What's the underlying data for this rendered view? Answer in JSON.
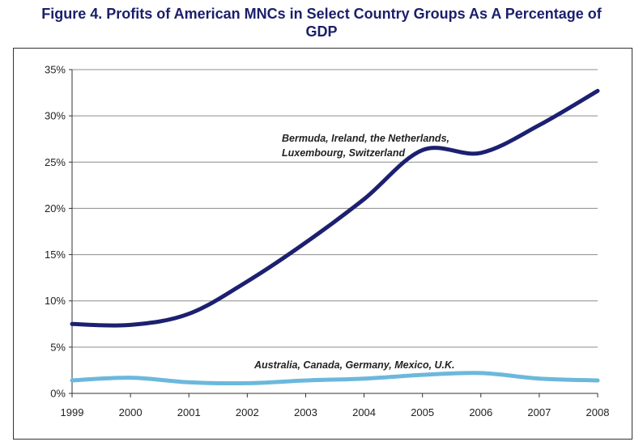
{
  "page_title_line1": "Figure 4. Profits of American MNCs in Select Country Groups As A Percentage of",
  "page_title_line2": "GDP",
  "chart_data": {
    "type": "line",
    "title": "Figure 4. Profits of American MNCs in Select Country Groups As A Percentage of GDP",
    "xlabel": "",
    "ylabel": "",
    "x": [
      1999,
      2000,
      2001,
      2002,
      2003,
      2004,
      2005,
      2006,
      2007,
      2008
    ],
    "x_tick_labels": [
      "1999",
      "2000",
      "2001",
      "2002",
      "2003",
      "2004",
      "2005",
      "2006",
      "2007",
      "2008"
    ],
    "y_tick_labels": [
      "0%",
      "5%",
      "10%",
      "15%",
      "20%",
      "25%",
      "30%",
      "35%"
    ],
    "y_ticks": [
      0,
      5,
      10,
      15,
      20,
      25,
      30,
      35
    ],
    "ylim": [
      0,
      35
    ],
    "xlim": [
      1999,
      2008
    ],
    "grid": true,
    "series": [
      {
        "name": "Bermuda, Ireland, the Netherlands, Luxembourg, Switzerland",
        "label_lines": [
          "Bermuda, Ireland, the Netherlands,",
          "Luxembourg, Switzerland"
        ],
        "color": "#1c2070",
        "values": [
          7.5,
          7.4,
          8.6,
          12.1,
          16.3,
          21.0,
          26.3,
          26.0,
          29.0,
          32.7
        ]
      },
      {
        "name": "Australia, Canada, Germany, Mexico, U.K.",
        "label_lines": [
          "Australia, Canada, Germany, Mexico, U.K."
        ],
        "color": "#6cb8dc",
        "values": [
          1.4,
          1.7,
          1.2,
          1.1,
          1.4,
          1.6,
          2.0,
          2.2,
          1.6,
          1.4
        ]
      }
    ]
  }
}
